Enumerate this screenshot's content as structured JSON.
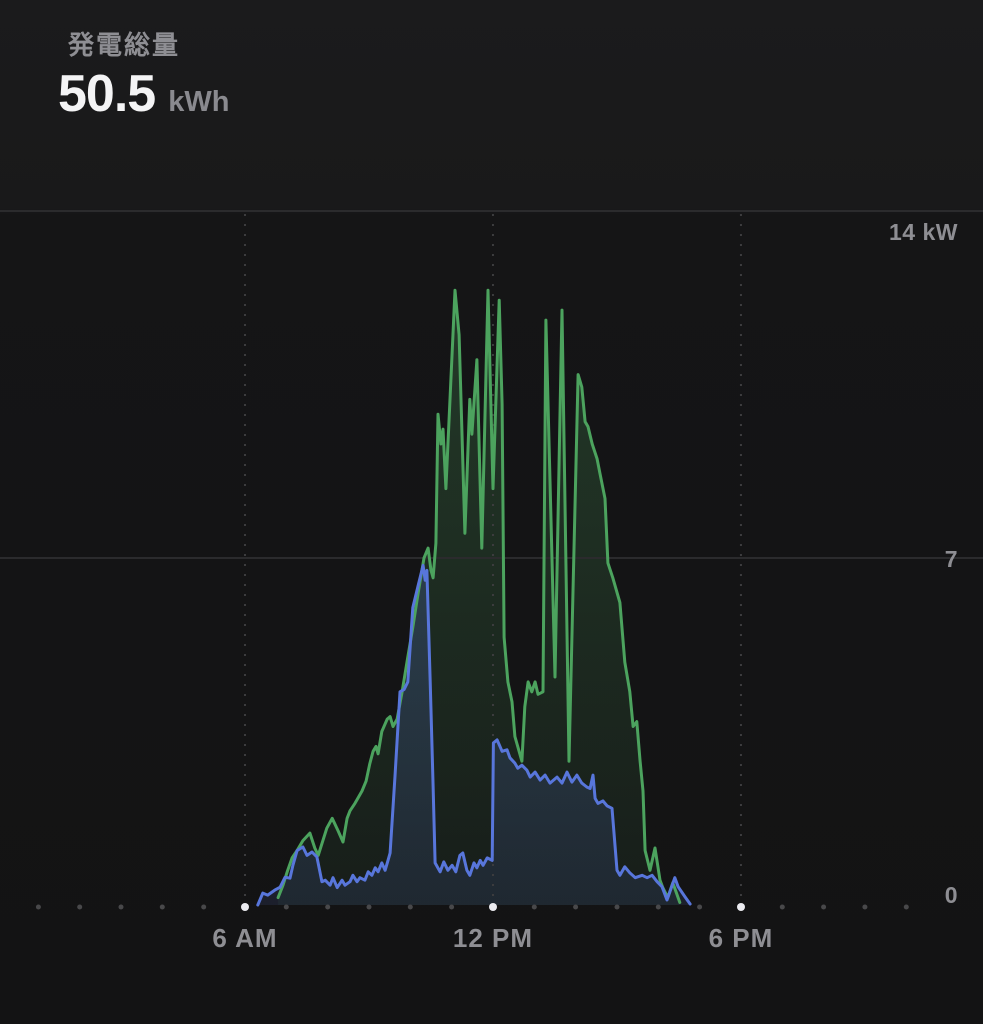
{
  "header": {
    "title": "発電総量",
    "value": "50.5",
    "unit": "kWh"
  },
  "colors": {
    "green_line": "#4CA35E",
    "blue_line": "#5876DB",
    "axis_label": "#8e8e93",
    "grid_solid": "#2b2b2d",
    "grid_dash": "#3c3c3e",
    "dot_minor": "#48484a",
    "dot_major": "#ebebf0",
    "value_text": "#f4f4f5",
    "title_text": "#8e8e93"
  },
  "chart_data": {
    "type": "area",
    "x_unit": "hour-of-day",
    "y_unit": "kW",
    "x_domain": [
      0,
      24
    ],
    "ylim": [
      0,
      14
    ],
    "grid": "on",
    "legend": "none",
    "x_ticks": [
      {
        "hour": 6,
        "label": "6 AM"
      },
      {
        "hour": 12,
        "label": "12 PM"
      },
      {
        "hour": 18,
        "label": "6 PM"
      }
    ],
    "y_ticks": [
      {
        "value": 14,
        "label": "14 kW"
      },
      {
        "value": 7,
        "label": "7"
      },
      {
        "value": 0,
        "label": "0"
      }
    ],
    "hour_dots": {
      "from": 0,
      "to": 22
    },
    "major_dot_hours": [
      6,
      12,
      18
    ],
    "series": [
      {
        "name": "green-generation",
        "color": "#4CA35E",
        "fill_opacity_top": 0.28,
        "fill_opacity_bottom": 0.07,
        "points": [
          [
            6.8,
            0.15
          ],
          [
            6.92,
            0.4
          ],
          [
            7.02,
            0.67
          ],
          [
            7.14,
            0.95
          ],
          [
            7.26,
            1.1
          ],
          [
            7.4,
            1.3
          ],
          [
            7.57,
            1.45
          ],
          [
            7.69,
            1.15
          ],
          [
            7.77,
            1.0
          ],
          [
            7.98,
            1.55
          ],
          [
            8.11,
            1.75
          ],
          [
            8.25,
            1.5
          ],
          [
            8.37,
            1.27
          ],
          [
            8.47,
            1.75
          ],
          [
            8.54,
            1.9
          ],
          [
            8.66,
            2.05
          ],
          [
            8.73,
            2.15
          ],
          [
            8.83,
            2.3
          ],
          [
            8.93,
            2.5
          ],
          [
            9.02,
            2.85
          ],
          [
            9.1,
            3.1
          ],
          [
            9.17,
            3.2
          ],
          [
            9.22,
            3.05
          ],
          [
            9.31,
            3.5
          ],
          [
            9.44,
            3.75
          ],
          [
            9.51,
            3.8
          ],
          [
            9.58,
            3.6
          ],
          [
            9.68,
            3.75
          ],
          [
            9.8,
            4.3
          ],
          [
            9.94,
            5.0
          ],
          [
            10.06,
            5.6
          ],
          [
            10.19,
            6.3
          ],
          [
            10.33,
            7.0
          ],
          [
            10.43,
            7.2
          ],
          [
            10.5,
            6.75
          ],
          [
            10.55,
            6.6
          ],
          [
            10.62,
            7.3
          ],
          [
            10.67,
            9.9
          ],
          [
            10.74,
            9.3
          ],
          [
            10.79,
            9.6
          ],
          [
            10.86,
            8.4
          ],
          [
            11.08,
            12.4
          ],
          [
            11.18,
            11.5
          ],
          [
            11.32,
            7.5
          ],
          [
            11.44,
            10.2
          ],
          [
            11.49,
            9.5
          ],
          [
            11.61,
            11.0
          ],
          [
            11.73,
            7.2
          ],
          [
            11.88,
            12.4
          ],
          [
            12.0,
            8.4
          ],
          [
            12.15,
            12.2
          ],
          [
            12.22,
            10.1
          ],
          [
            12.27,
            5.4
          ],
          [
            12.36,
            4.5
          ],
          [
            12.46,
            4.1
          ],
          [
            12.53,
            3.4
          ],
          [
            12.7,
            2.9
          ],
          [
            12.77,
            4.0
          ],
          [
            12.85,
            4.5
          ],
          [
            12.94,
            4.3
          ],
          [
            13.02,
            4.5
          ],
          [
            13.09,
            4.25
          ],
          [
            13.21,
            4.3
          ],
          [
            13.28,
            11.8
          ],
          [
            13.5,
            4.6
          ],
          [
            13.67,
            12.0
          ],
          [
            13.84,
            2.9
          ],
          [
            14.06,
            10.7
          ],
          [
            14.15,
            10.45
          ],
          [
            14.23,
            9.75
          ],
          [
            14.3,
            9.65
          ],
          [
            14.4,
            9.3
          ],
          [
            14.52,
            9.0
          ],
          [
            14.59,
            8.7
          ],
          [
            14.71,
            8.2
          ],
          [
            14.78,
            6.9
          ],
          [
            14.9,
            6.6
          ],
          [
            15.07,
            6.1
          ],
          [
            15.19,
            4.9
          ],
          [
            15.31,
            4.3
          ],
          [
            15.39,
            3.6
          ],
          [
            15.48,
            3.7
          ],
          [
            15.56,
            2.9
          ],
          [
            15.63,
            2.3
          ],
          [
            15.68,
            1.1
          ],
          [
            15.8,
            0.7
          ],
          [
            15.92,
            1.15
          ],
          [
            16.04,
            0.5
          ],
          [
            16.11,
            0.35
          ],
          [
            16.23,
            0.15
          ],
          [
            16.35,
            0.45
          ],
          [
            16.52,
            0.05
          ]
        ]
      },
      {
        "name": "blue-load",
        "color": "#5876DB",
        "fill_opacity_top": 0.34,
        "fill_opacity_bottom": 0.12,
        "points": [
          [
            6.31,
            0.0
          ],
          [
            6.43,
            0.24
          ],
          [
            6.55,
            0.2
          ],
          [
            6.72,
            0.3
          ],
          [
            6.85,
            0.36
          ],
          [
            6.97,
            0.56
          ],
          [
            7.09,
            0.54
          ],
          [
            7.16,
            0.8
          ],
          [
            7.26,
            1.1
          ],
          [
            7.4,
            1.17
          ],
          [
            7.5,
            1.0
          ],
          [
            7.62,
            1.07
          ],
          [
            7.74,
            0.97
          ],
          [
            7.86,
            0.47
          ],
          [
            7.94,
            0.5
          ],
          [
            8.06,
            0.4
          ],
          [
            8.13,
            0.55
          ],
          [
            8.23,
            0.35
          ],
          [
            8.35,
            0.5
          ],
          [
            8.42,
            0.4
          ],
          [
            8.54,
            0.47
          ],
          [
            8.61,
            0.6
          ],
          [
            8.71,
            0.47
          ],
          [
            8.78,
            0.55
          ],
          [
            8.9,
            0.5
          ],
          [
            8.98,
            0.67
          ],
          [
            9.07,
            0.6
          ],
          [
            9.15,
            0.75
          ],
          [
            9.22,
            0.67
          ],
          [
            9.31,
            0.85
          ],
          [
            9.39,
            0.7
          ],
          [
            9.46,
            0.9
          ],
          [
            9.51,
            1.05
          ],
          [
            9.63,
            2.6
          ],
          [
            9.75,
            4.3
          ],
          [
            9.85,
            4.35
          ],
          [
            9.94,
            4.5
          ],
          [
            10.06,
            6.0
          ],
          [
            10.19,
            6.45
          ],
          [
            10.31,
            6.85
          ],
          [
            10.36,
            6.55
          ],
          [
            10.4,
            6.75
          ],
          [
            10.48,
            4.5
          ],
          [
            10.55,
            2.4
          ],
          [
            10.6,
            0.85
          ],
          [
            10.72,
            0.67
          ],
          [
            10.81,
            0.87
          ],
          [
            10.91,
            0.7
          ],
          [
            11.01,
            0.8
          ],
          [
            11.1,
            0.67
          ],
          [
            11.2,
            1.0
          ],
          [
            11.27,
            1.05
          ],
          [
            11.37,
            0.7
          ],
          [
            11.44,
            0.6
          ],
          [
            11.54,
            0.85
          ],
          [
            11.61,
            0.75
          ],
          [
            11.69,
            0.9
          ],
          [
            11.76,
            0.8
          ],
          [
            11.86,
            0.95
          ],
          [
            11.98,
            0.9
          ],
          [
            12.01,
            3.27
          ],
          [
            12.1,
            3.33
          ],
          [
            12.22,
            3.1
          ],
          [
            12.34,
            3.13
          ],
          [
            12.41,
            2.97
          ],
          [
            12.53,
            2.86
          ],
          [
            12.6,
            2.76
          ],
          [
            12.7,
            2.82
          ],
          [
            12.82,
            2.72
          ],
          [
            12.9,
            2.58
          ],
          [
            13.02,
            2.68
          ],
          [
            13.14,
            2.52
          ],
          [
            13.26,
            2.62
          ],
          [
            13.38,
            2.46
          ],
          [
            13.55,
            2.58
          ],
          [
            13.67,
            2.46
          ],
          [
            13.79,
            2.68
          ],
          [
            13.91,
            2.48
          ],
          [
            14.03,
            2.62
          ],
          [
            14.15,
            2.46
          ],
          [
            14.27,
            2.38
          ],
          [
            14.35,
            2.35
          ],
          [
            14.42,
            2.62
          ],
          [
            14.47,
            2.15
          ],
          [
            14.54,
            2.05
          ],
          [
            14.66,
            2.1
          ],
          [
            14.76,
            2.0
          ],
          [
            14.88,
            1.95
          ],
          [
            15.0,
            0.7
          ],
          [
            15.07,
            0.6
          ],
          [
            15.19,
            0.77
          ],
          [
            15.31,
            0.65
          ],
          [
            15.44,
            0.55
          ],
          [
            15.61,
            0.6
          ],
          [
            15.73,
            0.55
          ],
          [
            15.85,
            0.6
          ],
          [
            15.97,
            0.47
          ],
          [
            16.09,
            0.37
          ],
          [
            16.21,
            0.1
          ],
          [
            16.4,
            0.55
          ],
          [
            16.48,
            0.37
          ],
          [
            16.65,
            0.16
          ],
          [
            16.77,
            0.02
          ]
        ]
      }
    ]
  }
}
